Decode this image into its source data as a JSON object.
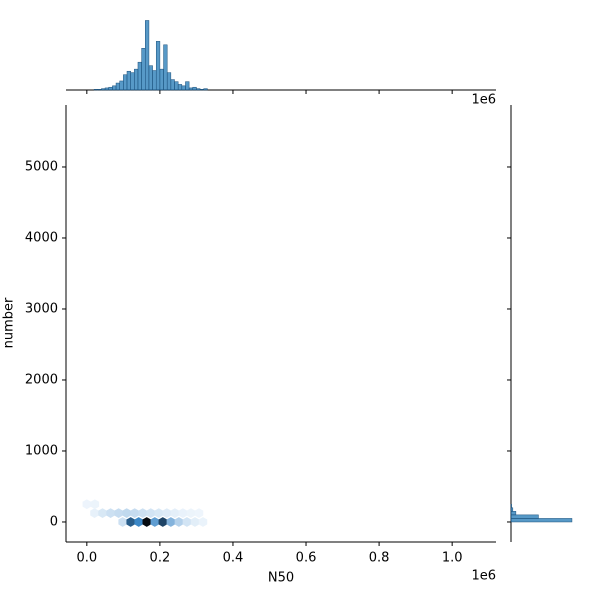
{
  "chart_data": [
    {
      "type": "hexbin",
      "xlabel": "N50",
      "ylabel": "number",
      "x_offset_text": "1e6",
      "xlim": [
        -57000,
        1120000
      ],
      "ylim": [
        -282,
        5873
      ],
      "xticks": [
        {
          "value": 0,
          "label": "0.0"
        },
        {
          "value": 200000,
          "label": "0.2"
        },
        {
          "value": 400000,
          "label": "0.4"
        },
        {
          "value": 600000,
          "label": "0.6"
        },
        {
          "value": 800000,
          "label": "0.8"
        },
        {
          "value": 1000000,
          "label": "1.0"
        }
      ],
      "yticks": [
        0,
        1000,
        2000,
        3000,
        4000,
        5000
      ],
      "colormap": [
        "#eef5fc",
        "#3a86c6",
        "#050a10"
      ],
      "x": [
        98000,
        120000,
        142000,
        164000,
        186000,
        208000,
        230000,
        252000,
        274000,
        296000,
        318000,
        21000,
        43000,
        65000,
        87000,
        109000,
        131000,
        153000,
        175000,
        197000,
        219000,
        241000,
        263000,
        285000,
        307000,
        0,
        22000
      ],
      "y": [
        0,
        0,
        0,
        0,
        0,
        0,
        0,
        0,
        0,
        0,
        0,
        125,
        125,
        125,
        125,
        125,
        125,
        125,
        125,
        125,
        125,
        125,
        125,
        125,
        125,
        250,
        250
      ],
      "counts": [
        30,
        200,
        150,
        300,
        120,
        230,
        90,
        50,
        25,
        12,
        5,
        8,
        20,
        30,
        35,
        40,
        35,
        30,
        25,
        20,
        15,
        10,
        6,
        4,
        2,
        3,
        4
      ]
    },
    {
      "type": "histogram",
      "orientation": "vertical",
      "color": "#1f77b4",
      "x_offset_text": "1e6",
      "ylim": [
        0,
        105
      ],
      "bins": [
        20000,
        30000,
        40000,
        50000,
        60000,
        70000,
        80000,
        90000,
        100000,
        110000,
        120000,
        130000,
        140000,
        150000,
        160000,
        170000,
        180000,
        190000,
        200000,
        210000,
        220000,
        230000,
        240000,
        250000,
        260000,
        270000,
        280000,
        290000,
        300000,
        310000,
        320000,
        330000
      ],
      "counts": [
        1,
        1,
        2,
        3,
        4,
        6,
        10,
        13,
        22,
        27,
        25,
        30,
        40,
        60,
        100,
        35,
        28,
        70,
        30,
        65,
        25,
        15,
        12,
        8,
        6,
        12,
        3,
        4,
        2,
        1,
        2
      ]
    },
    {
      "type": "histogram",
      "orientation": "horizontal",
      "color": "#1f77b4",
      "xlim": [
        0,
        105
      ],
      "bins": [
        0,
        50,
        100,
        150,
        200,
        250
      ],
      "counts": [
        100,
        45,
        8,
        3,
        1
      ]
    }
  ]
}
